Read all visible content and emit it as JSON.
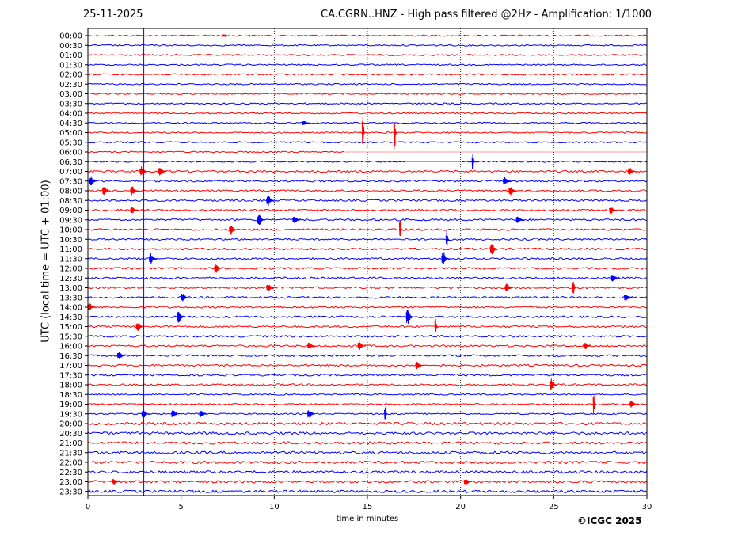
{
  "header": {
    "date": "25-11-2025",
    "title": "CA.CGRN..HNZ - High pass filtered @2Hz - Amplification: 1/1000"
  },
  "footer": {
    "copyright": "©ICGC 2025"
  },
  "chart_data": {
    "type": "line",
    "title": "CA.CGRN..HNZ - High pass filtered @2Hz - Amplification: 1/1000",
    "xlabel": "time in minutes",
    "ylabel": "UTC (local time = UTC + 01:00)",
    "xlim": [
      0,
      30
    ],
    "x_ticks": [
      "0",
      "5",
      "10",
      "15",
      "20",
      "25",
      "30"
    ],
    "rows": [
      "00:00",
      "00:30",
      "01:00",
      "01:30",
      "02:00",
      "02:30",
      "03:00",
      "03:30",
      "04:00",
      "04:30",
      "05:00",
      "05:30",
      "06:00",
      "06:30",
      "07:00",
      "07:30",
      "08:00",
      "08:30",
      "09:00",
      "09:30",
      "10:00",
      "10:30",
      "11:00",
      "11:30",
      "12:00",
      "12:30",
      "13:00",
      "13:30",
      "14:00",
      "14:30",
      "15:00",
      "15:30",
      "16:00",
      "16:30",
      "17:00",
      "17:30",
      "18:00",
      "18:30",
      "19:00",
      "19:30",
      "20:00",
      "20:30",
      "21:00",
      "21:30",
      "22:00",
      "22:30",
      "23:00",
      "23:30"
    ],
    "trace_colors": [
      "#ff0000",
      "#0000ff"
    ],
    "grid": "vertical-dotted",
    "vertical_marks": [
      {
        "minute": 3.0,
        "color": "#0000ff"
      },
      {
        "minute": 16.0,
        "color": "#ff0000"
      }
    ],
    "gaps": [
      {
        "row": "06:00",
        "from": 13.8,
        "to": 30
      },
      {
        "row": "06:30",
        "from": 17.0,
        "to": 20.0
      }
    ],
    "events": [
      {
        "row": "00:00",
        "minute": 7.4,
        "amp": 2
      },
      {
        "row": "04:30",
        "minute": 11.7,
        "amp": 3
      },
      {
        "row": "05:00",
        "minute": 14.8,
        "amp": 22
      },
      {
        "row": "05:00",
        "minute": 16.5,
        "amp": 25
      },
      {
        "row": "06:30",
        "minute": 20.7,
        "amp": 12
      },
      {
        "row": "07:00",
        "minute": 3.0,
        "amp": 7
      },
      {
        "row": "07:00",
        "minute": 4.0,
        "amp": 6
      },
      {
        "row": "07:00",
        "minute": 29.2,
        "amp": 5
      },
      {
        "row": "07:30",
        "minute": 0.3,
        "amp": 6
      },
      {
        "row": "07:30",
        "minute": 22.5,
        "amp": 6
      },
      {
        "row": "08:00",
        "minute": 1.0,
        "amp": 6
      },
      {
        "row": "08:00",
        "minute": 2.5,
        "amp": 6
      },
      {
        "row": "08:00",
        "minute": 22.8,
        "amp": 6
      },
      {
        "row": "08:30",
        "minute": 9.8,
        "amp": 8
      },
      {
        "row": "09:00",
        "minute": 2.5,
        "amp": 6
      },
      {
        "row": "09:00",
        "minute": 28.2,
        "amp": 5
      },
      {
        "row": "09:30",
        "minute": 9.3,
        "amp": 8
      },
      {
        "row": "09:30",
        "minute": 11.2,
        "amp": 6
      },
      {
        "row": "09:30",
        "minute": 23.2,
        "amp": 5
      },
      {
        "row": "10:00",
        "minute": 7.8,
        "amp": 7
      },
      {
        "row": "10:00",
        "minute": 16.8,
        "amp": 14
      },
      {
        "row": "10:30",
        "minute": 19.3,
        "amp": 12
      },
      {
        "row": "11:00",
        "minute": 21.8,
        "amp": 8
      },
      {
        "row": "11:30",
        "minute": 3.5,
        "amp": 7
      },
      {
        "row": "11:30",
        "minute": 19.2,
        "amp": 10
      },
      {
        "row": "12:00",
        "minute": 7.0,
        "amp": 6
      },
      {
        "row": "12:30",
        "minute": 28.3,
        "amp": 6
      },
      {
        "row": "13:00",
        "minute": 9.8,
        "amp": 6
      },
      {
        "row": "13:00",
        "minute": 22.6,
        "amp": 6
      },
      {
        "row": "13:00",
        "minute": 26.1,
        "amp": 12
      },
      {
        "row": "13:30",
        "minute": 5.2,
        "amp": 7
      },
      {
        "row": "13:30",
        "minute": 29.0,
        "amp": 5
      },
      {
        "row": "14:00",
        "minute": 0.2,
        "amp": 6
      },
      {
        "row": "14:30",
        "minute": 5.0,
        "amp": 8
      },
      {
        "row": "14:30",
        "minute": 17.3,
        "amp": 10
      },
      {
        "row": "15:00",
        "minute": 2.8,
        "amp": 6
      },
      {
        "row": "15:00",
        "minute": 18.7,
        "amp": 14
      },
      {
        "row": "16:00",
        "minute": 12.0,
        "amp": 5
      },
      {
        "row": "16:00",
        "minute": 14.7,
        "amp": 6
      },
      {
        "row": "16:00",
        "minute": 26.8,
        "amp": 5
      },
      {
        "row": "16:30",
        "minute": 1.8,
        "amp": 5
      },
      {
        "row": "17:00",
        "minute": 17.8,
        "amp": 5
      },
      {
        "row": "18:00",
        "minute": 25.0,
        "amp": 8
      },
      {
        "row": "19:00",
        "minute": 27.2,
        "amp": 14
      },
      {
        "row": "19:00",
        "minute": 29.3,
        "amp": 5
      },
      {
        "row": "19:30",
        "minute": 3.1,
        "amp": 6
      },
      {
        "row": "19:30",
        "minute": 4.7,
        "amp": 6
      },
      {
        "row": "19:30",
        "minute": 6.2,
        "amp": 5
      },
      {
        "row": "19:30",
        "minute": 12.0,
        "amp": 6
      },
      {
        "row": "19:30",
        "minute": 16.0,
        "amp": 12
      },
      {
        "row": "23:00",
        "minute": 1.5,
        "amp": 4
      },
      {
        "row": "23:00",
        "minute": 20.4,
        "amp": 4
      }
    ]
  }
}
